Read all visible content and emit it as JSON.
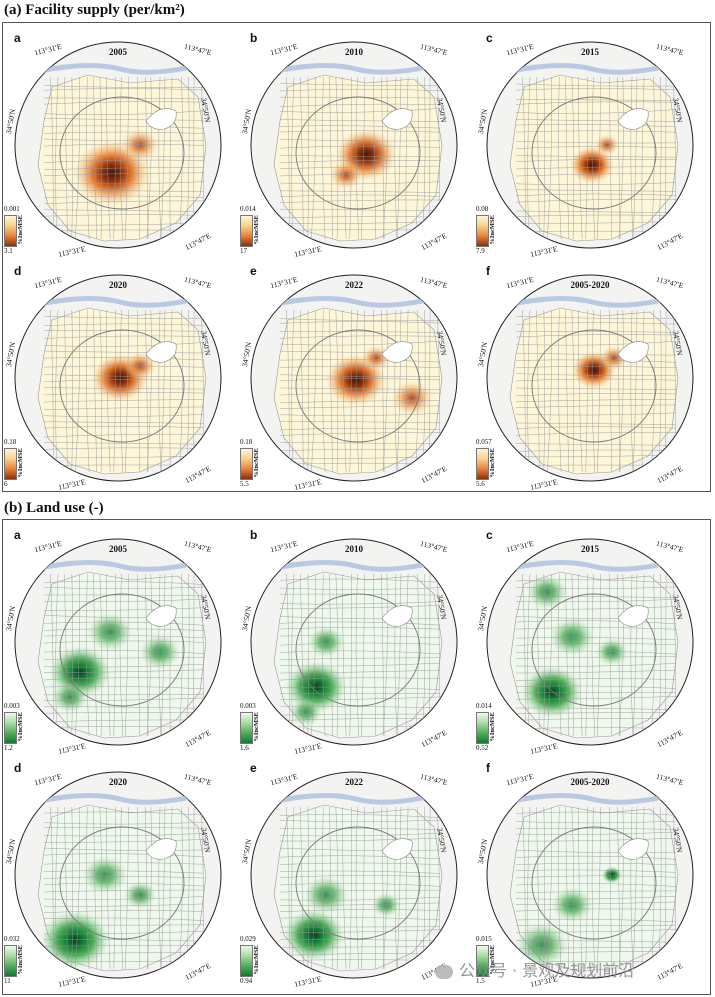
{
  "sections": [
    {
      "title": "(a) Facility supply (per/km²)",
      "theme": "orange",
      "colors": [
        "#fdf6d8",
        "#f7d08a",
        "#e8823a",
        "#8a2f0c",
        "#3a1a10"
      ],
      "panels": [
        {
          "label": "a",
          "year": "2005",
          "legend_top": "0.001",
          "legend_bottom": "3.1"
        },
        {
          "label": "b",
          "year": "2010",
          "legend_top": "0.014",
          "legend_bottom": "17"
        },
        {
          "label": "c",
          "year": "2015",
          "legend_top": "0.08",
          "legend_bottom": "7.9"
        },
        {
          "label": "d",
          "year": "2020",
          "legend_top": "0.18",
          "legend_bottom": "6"
        },
        {
          "label": "e",
          "year": "2022",
          "legend_top": "0.18",
          "legend_bottom": "5.5"
        },
        {
          "label": "f",
          "year": "2005-2020",
          "legend_top": "0.057",
          "legend_bottom": "5.6"
        }
      ]
    },
    {
      "title": "(b) Land use (-)",
      "theme": "green",
      "colors": [
        "#eef8ec",
        "#a9dca4",
        "#4fae5a",
        "#137a35",
        "#0b3d1a"
      ],
      "panels": [
        {
          "label": "a",
          "year": "2005",
          "legend_top": "0.003",
          "legend_bottom": "1.2"
        },
        {
          "label": "b",
          "year": "2010",
          "legend_top": "0.003",
          "legend_bottom": "1.6"
        },
        {
          "label": "c",
          "year": "2015",
          "legend_top": "0.014",
          "legend_bottom": "0.52"
        },
        {
          "label": "d",
          "year": "2020",
          "legend_top": "0.032",
          "legend_bottom": "11"
        },
        {
          "label": "e",
          "year": "2022",
          "legend_top": "0.029",
          "legend_bottom": "0.94"
        },
        {
          "label": "f",
          "year": "2005-2020",
          "legend_top": "0.015",
          "legend_bottom": "1.5"
        }
      ]
    }
  ],
  "coords": {
    "top_left": "113°31′E",
    "top_right": "113°47′E",
    "right": "34°50′N",
    "left": "34°50′N",
    "bottom_left": "113°31′E",
    "bottom_right": "113°47′E"
  },
  "legend_label": "%IncMSE",
  "watermark": "公众号 · 景观及规划前沿"
}
